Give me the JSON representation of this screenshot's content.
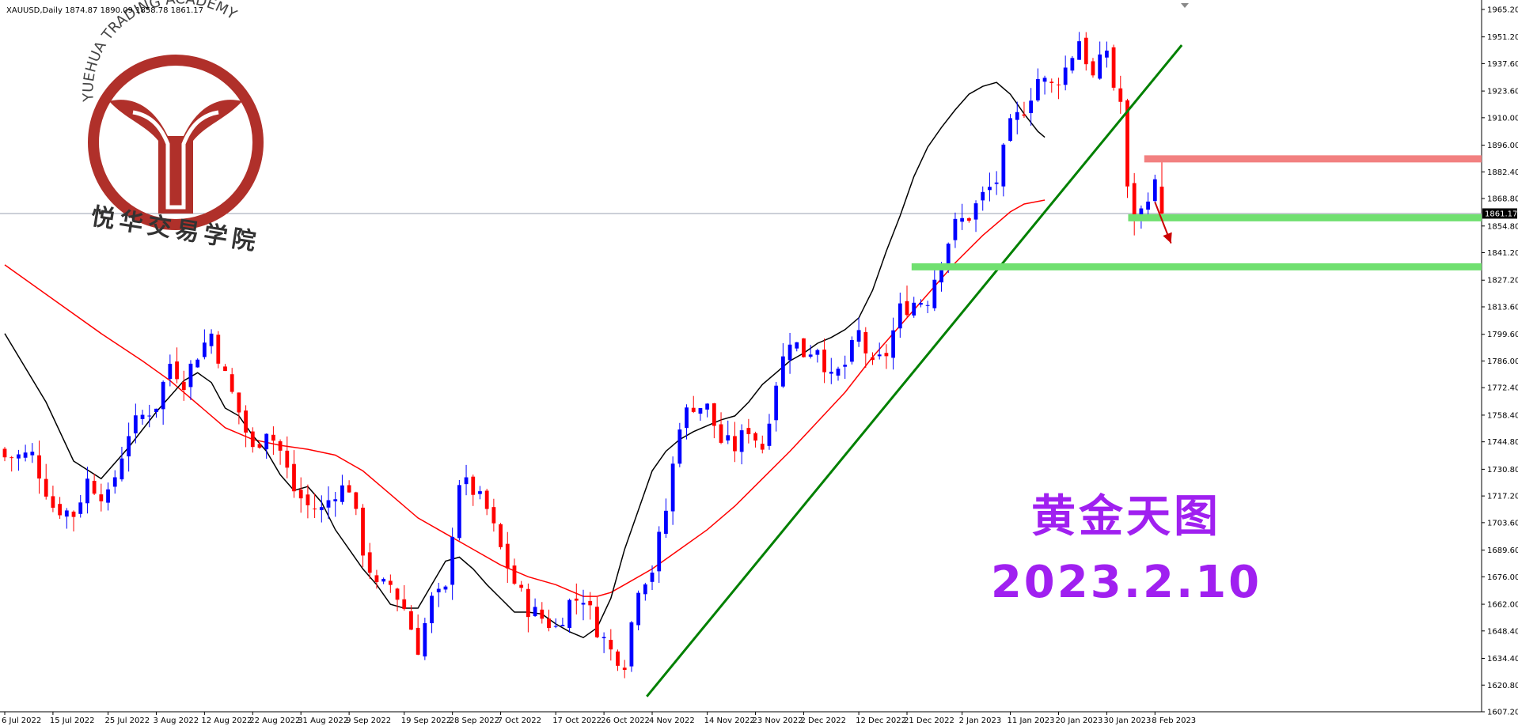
{
  "header": {
    "text": "XAUUSD,Daily  1874.87 1890.09 1858.78 1861.17"
  },
  "logo": {
    "arc_text": "YUEHUA TRADING ACADEMY",
    "cn_text": "悦华交易学院"
  },
  "overlay": {
    "title": "黄金天图",
    "date": "2023.2.10"
  },
  "colors": {
    "bull": "#0000ff",
    "bear": "#ff0000",
    "ma_fast": "#000000",
    "ma_slow": "#ff0000",
    "trendline": "#008000",
    "resistance": "#f28080",
    "support": "#70e070",
    "text_purple": "#a020f0",
    "logo_red": "#b0302a"
  },
  "chart_data": {
    "type": "candlestick",
    "symbol": "XAUUSD",
    "timeframe": "Daily",
    "ohlc_last": {
      "open": 1874.87,
      "high": 1890.09,
      "low": 1858.78,
      "close": 1861.17
    },
    "current_price_label": "1861.17",
    "ylim": [
      1607.2,
      1970.0
    ],
    "y_ticks": [
      "1965.20",
      "1951.20",
      "1937.60",
      "1923.60",
      "1910.00",
      "1896.00",
      "1882.40",
      "1868.80",
      "1854.80",
      "1841.20",
      "1827.20",
      "1813.60",
      "1799.60",
      "1786.00",
      "1772.40",
      "1758.40",
      "1744.80",
      "1730.80",
      "1717.20",
      "1703.60",
      "1689.60",
      "1676.00",
      "1662.00",
      "1648.40",
      "1634.40",
      "1620.80",
      "1607.20"
    ],
    "x_labels": [
      "6 Jul 2022",
      "15 Jul 2022",
      "25 Jul 2022",
      "3 Aug 2022",
      "12 Aug 2022",
      "22 Aug 2022",
      "31 Aug 2022",
      "9 Sep 2022",
      "19 Sep 2022",
      "28 Sep 2022",
      "7 Oct 2022",
      "17 Oct 2022",
      "26 Oct 2022",
      "4 Nov 2022",
      "14 Nov 2022",
      "23 Nov 2022",
      "2 Dec 2022",
      "12 Dec 2022",
      "21 Dec 2022",
      "2 Jan 2023",
      "11 Jan 2023",
      "20 Jan 2023",
      "30 Jan 2023",
      "8 Feb 2023"
    ],
    "x_label_bar_index": [
      0,
      7,
      15,
      22,
      29,
      36,
      43,
      50,
      58,
      65,
      72,
      80,
      87,
      94,
      102,
      109,
      116,
      124,
      131,
      139,
      146,
      153,
      160,
      167
    ],
    "close_path": [
      [
        0,
        1737
      ],
      [
        4,
        1738
      ],
      [
        7,
        1712
      ],
      [
        10,
        1708
      ],
      [
        12,
        1725
      ],
      [
        15,
        1716
      ],
      [
        18,
        1750
      ],
      [
        20,
        1758
      ],
      [
        22,
        1764
      ],
      [
        24,
        1785
      ],
      [
        26,
        1776
      ],
      [
        28,
        1790
      ],
      [
        30,
        1800
      ],
      [
        32,
        1778
      ],
      [
        34,
        1760
      ],
      [
        36,
        1740
      ],
      [
        38,
        1752
      ],
      [
        40,
        1740
      ],
      [
        42,
        1720
      ],
      [
        44,
        1712
      ],
      [
        46,
        1710
      ],
      [
        48,
        1720
      ],
      [
        50,
        1722
      ],
      [
        52,
        1690
      ],
      [
        54,
        1670
      ],
      [
        56,
        1672
      ],
      [
        58,
        1660
      ],
      [
        60,
        1640
      ],
      [
        62,
        1664
      ],
      [
        64,
        1668
      ],
      [
        65,
        1700
      ],
      [
        66,
        1725
      ],
      [
        68,
        1720
      ],
      [
        70,
        1710
      ],
      [
        72,
        1690
      ],
      [
        74,
        1673
      ],
      [
        76,
        1660
      ],
      [
        78,
        1655
      ],
      [
        80,
        1650
      ],
      [
        82,
        1663
      ],
      [
        84,
        1666
      ],
      [
        86,
        1650
      ],
      [
        88,
        1638
      ],
      [
        90,
        1633
      ],
      [
        92,
        1672
      ],
      [
        94,
        1680
      ],
      [
        96,
        1710
      ],
      [
        98,
        1755
      ],
      [
        100,
        1764
      ],
      [
        102,
        1762
      ],
      [
        104,
        1745
      ],
      [
        106,
        1742
      ],
      [
        108,
        1752
      ],
      [
        110,
        1742
      ],
      [
        112,
        1776
      ],
      [
        114,
        1798
      ],
      [
        116,
        1790
      ],
      [
        118,
        1794
      ],
      [
        120,
        1776
      ],
      [
        122,
        1784
      ],
      [
        124,
        1800
      ],
      [
        126,
        1782
      ],
      [
        128,
        1790
      ],
      [
        130,
        1812
      ],
      [
        132,
        1816
      ],
      [
        134,
        1818
      ],
      [
        136,
        1840
      ],
      [
        138,
        1855
      ],
      [
        140,
        1860
      ],
      [
        142,
        1870
      ],
      [
        144,
        1878
      ],
      [
        146,
        1905
      ],
      [
        148,
        1915
      ],
      [
        150,
        1930
      ],
      [
        152,
        1926
      ],
      [
        154,
        1935
      ],
      [
        156,
        1950
      ],
      [
        158,
        1930
      ],
      [
        160,
        1945
      ],
      [
        161,
        1926
      ],
      [
        162,
        1918
      ],
      [
        163,
        1872
      ],
      [
        164,
        1860
      ],
      [
        165,
        1862
      ],
      [
        166,
        1872
      ],
      [
        167,
        1875
      ],
      [
        168,
        1861.17
      ]
    ],
    "series": [
      {
        "type": "moving_average",
        "color": "black",
        "points": [
          [
            0,
            1800
          ],
          [
            6,
            1765
          ],
          [
            10,
            1735
          ],
          [
            14,
            1726
          ],
          [
            18,
            1742
          ],
          [
            22,
            1760
          ],
          [
            26,
            1776
          ],
          [
            28,
            1780
          ],
          [
            30,
            1775
          ],
          [
            32,
            1762
          ],
          [
            34,
            1758
          ],
          [
            36,
            1748
          ],
          [
            38,
            1740
          ],
          [
            40,
            1728
          ],
          [
            42,
            1720
          ],
          [
            44,
            1722
          ],
          [
            46,
            1714
          ],
          [
            48,
            1700
          ],
          [
            50,
            1690
          ],
          [
            52,
            1680
          ],
          [
            54,
            1672
          ],
          [
            56,
            1662
          ],
          [
            58,
            1660
          ],
          [
            60,
            1660
          ],
          [
            62,
            1672
          ],
          [
            64,
            1684
          ],
          [
            66,
            1686
          ],
          [
            68,
            1680
          ],
          [
            70,
            1672
          ],
          [
            72,
            1665
          ],
          [
            74,
            1658
          ],
          [
            76,
            1658
          ],
          [
            78,
            1657
          ],
          [
            80,
            1652
          ],
          [
            82,
            1648
          ],
          [
            84,
            1645
          ],
          [
            86,
            1650
          ],
          [
            88,
            1665
          ],
          [
            90,
            1690
          ],
          [
            92,
            1710
          ],
          [
            94,
            1730
          ],
          [
            96,
            1740
          ],
          [
            98,
            1746
          ],
          [
            100,
            1750
          ],
          [
            102,
            1753
          ],
          [
            104,
            1756
          ],
          [
            106,
            1758
          ],
          [
            108,
            1765
          ],
          [
            110,
            1774
          ],
          [
            112,
            1780
          ],
          [
            114,
            1786
          ],
          [
            116,
            1790
          ],
          [
            118,
            1795
          ],
          [
            120,
            1798
          ],
          [
            122,
            1802
          ],
          [
            124,
            1808
          ],
          [
            126,
            1822
          ],
          [
            128,
            1842
          ],
          [
            130,
            1860
          ],
          [
            132,
            1880
          ],
          [
            134,
            1895
          ],
          [
            136,
            1905
          ],
          [
            138,
            1914
          ],
          [
            140,
            1922
          ],
          [
            142,
            1926
          ],
          [
            144,
            1928
          ],
          [
            146,
            1922
          ],
          [
            148,
            1912
          ],
          [
            150,
            1903
          ],
          [
            151,
            1900
          ]
        ]
      },
      {
        "type": "moving_average",
        "color": "red",
        "points": [
          [
            0,
            1835
          ],
          [
            8,
            1815
          ],
          [
            14,
            1800
          ],
          [
            20,
            1786
          ],
          [
            24,
            1776
          ],
          [
            28,
            1764
          ],
          [
            32,
            1752
          ],
          [
            36,
            1746
          ],
          [
            40,
            1743
          ],
          [
            44,
            1741
          ],
          [
            48,
            1738
          ],
          [
            52,
            1730
          ],
          [
            56,
            1718
          ],
          [
            60,
            1706
          ],
          [
            64,
            1698
          ],
          [
            68,
            1690
          ],
          [
            72,
            1682
          ],
          [
            76,
            1676
          ],
          [
            80,
            1672
          ],
          [
            84,
            1666
          ],
          [
            86,
            1666
          ],
          [
            88,
            1668
          ],
          [
            90,
            1672
          ],
          [
            94,
            1680
          ],
          [
            98,
            1690
          ],
          [
            102,
            1700
          ],
          [
            106,
            1712
          ],
          [
            110,
            1726
          ],
          [
            114,
            1740
          ],
          [
            118,
            1755
          ],
          [
            122,
            1770
          ],
          [
            126,
            1788
          ],
          [
            130,
            1804
          ],
          [
            134,
            1820
          ],
          [
            138,
            1836
          ],
          [
            142,
            1850
          ],
          [
            146,
            1862
          ],
          [
            148,
            1866
          ],
          [
            151,
            1868
          ]
        ]
      }
    ],
    "annotations": [
      {
        "type": "trendline",
        "from": [
          "3 Nov 2022",
          1615
        ],
        "to": [
          "13 Feb 2023",
          1947
        ]
      },
      {
        "type": "resistance_zone",
        "price": 1889,
        "from_date": "6 Feb 2023"
      },
      {
        "type": "support_zone",
        "price": 1859,
        "from_date": "3 Feb 2023"
      },
      {
        "type": "support_zone",
        "price": 1834,
        "from_date": "22 Dec 2022"
      },
      {
        "type": "arrow",
        "direction": "down",
        "from": [
          "8 Feb 2023",
          1867
        ],
        "to": [
          "11 Feb 2023",
          1846
        ]
      }
    ]
  }
}
